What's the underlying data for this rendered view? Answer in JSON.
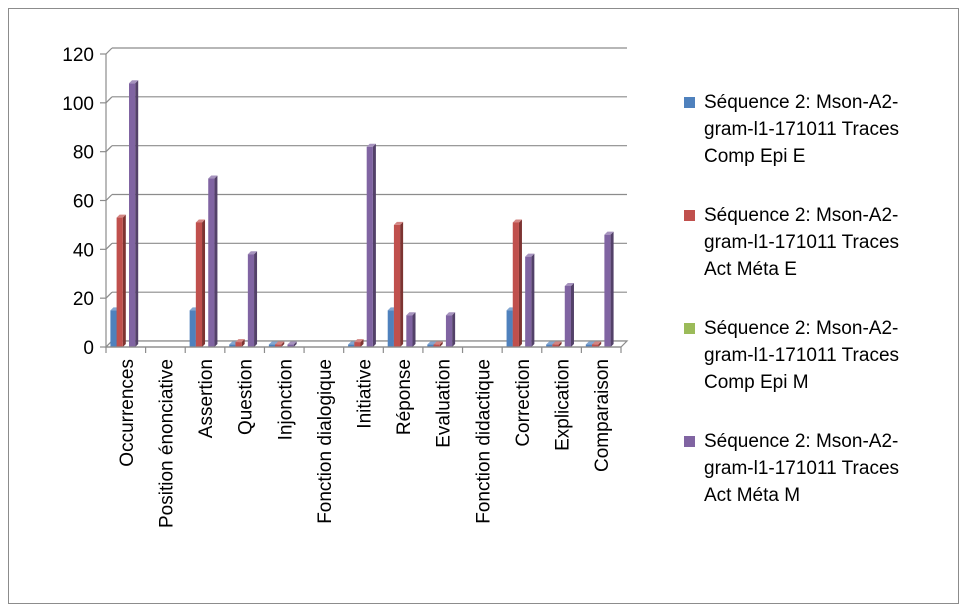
{
  "chart_data": {
    "type": "bar",
    "categories": [
      "Occurrences",
      "Position énonciative",
      "Assertion",
      "Question",
      "Injonction",
      "Fonction dialogique",
      "Initiative",
      "Réponse",
      "Evaluation",
      "Fonction didactique",
      "Correction",
      "Explication",
      "Comparaison"
    ],
    "series": [
      {
        "name_lines": [
          "Séquence 2: Mson-A2-",
          "gram-l1-171011 Traces",
          "Comp Epi E"
        ],
        "color": "#4F81BD",
        "values": [
          15,
          0,
          15,
          1,
          1,
          0,
          1,
          15,
          1,
          0,
          15,
          1,
          1
        ]
      },
      {
        "name_lines": [
          "Séquence 2: Mson-A2-",
          "gram-l1-171011 Traces",
          "Act Méta E"
        ],
        "color": "#C0504D",
        "values": [
          53,
          0,
          51,
          2,
          1,
          0,
          2,
          50,
          1,
          0,
          51,
          1,
          1
        ]
      },
      {
        "name_lines": [
          "Séquence 2: Mson-A2-",
          "gram-l1-171011 Traces",
          "Comp Epi M"
        ],
        "color": "#9BBB59",
        "values": [
          0,
          0,
          0,
          0,
          0,
          0,
          0,
          0,
          0,
          0,
          0,
          0,
          0
        ]
      },
      {
        "name_lines": [
          "Séquence 2: Mson-A2-",
          "gram-l1-171011 Traces",
          "Act Méta M"
        ],
        "color": "#8064A2",
        "values": [
          108,
          0,
          69,
          38,
          1,
          0,
          82,
          13,
          13,
          0,
          37,
          25,
          46
        ]
      }
    ],
    "y_ticks": [
      "0",
      "20",
      "40",
      "60",
      "80",
      "100",
      "120"
    ],
    "ylim": [
      0,
      120
    ],
    "grid": true,
    "legend_position": "right"
  }
}
